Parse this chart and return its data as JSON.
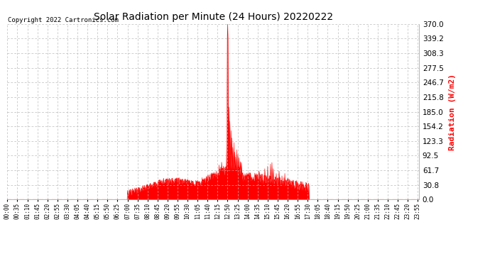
{
  "title": "Solar Radiation per Minute (24 Hours) 20220222",
  "copyright_text": "Copyright 2022 Cartronics.com",
  "ylabel": "Radiation (W/m2)",
  "ylabel_color": "#FF0000",
  "fill_color": "#FF0000",
  "line_color": "#FF0000",
  "background_color": "#FFFFFF",
  "grid_color": "#BBBBBB",
  "dashed_line_color": "#FF0000",
  "ylim": [
    0,
    370
  ],
  "yticks": [
    0.0,
    30.8,
    61.7,
    92.5,
    123.3,
    154.2,
    185.0,
    215.8,
    246.7,
    277.5,
    308.3,
    339.2,
    370.0
  ],
  "total_minutes": 1440,
  "peak_minute": 770,
  "peak_value": 370,
  "xtick_step": 35,
  "figwidth": 6.9,
  "figheight": 3.75,
  "dpi": 100
}
